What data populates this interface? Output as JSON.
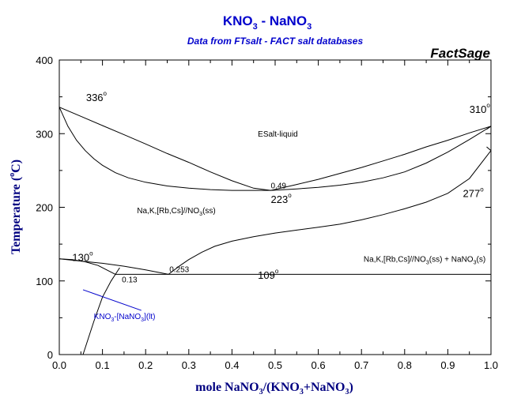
{
  "chart_data": {
    "type": "line",
    "title": {
      "main": "KNO",
      "sub1": "3",
      "mid": " - NaNO",
      "sub2": "3"
    },
    "subtitle": "Data from FTsalt - FACT salt databases",
    "brand": "FactSage",
    "xlabel": {
      "t1": "mole NaNO",
      "s1": "3",
      "t2": "/(KNO",
      "s2": "3",
      "t3": "+NaNO",
      "s3": "3",
      "t4": ")"
    },
    "ylabel": {
      "t1": "Temperature (",
      "sup": "o",
      "t2": "C)"
    },
    "xlim": [
      0,
      1
    ],
    "ylim": [
      0,
      400
    ],
    "xticks": [
      "0.0",
      "0.1",
      "0.2",
      "0.3",
      "0.4",
      "0.5",
      "0.6",
      "0.7",
      "0.8",
      "0.9",
      "1.0"
    ],
    "yticks": [
      "0",
      "100",
      "200",
      "300",
      "400"
    ],
    "grid": false,
    "colors": {
      "curves": "#000000",
      "title": "#0000cc",
      "labels": "#000080",
      "metastable": "#0000cc"
    },
    "series": [
      {
        "x": [
          0,
          0.05,
          0.1,
          0.15,
          0.2,
          0.25,
          0.3,
          0.35,
          0.4,
          0.45,
          0.49,
          0.55,
          0.6,
          0.65,
          0.7,
          0.75,
          0.8,
          0.85,
          0.9,
          0.95,
          1.0
        ],
        "y": [
          336,
          323.5,
          311,
          298.5,
          286,
          273,
          261,
          248,
          236,
          226,
          223,
          231,
          238,
          246,
          254,
          263,
          272,
          282,
          291,
          301,
          310
        ]
      },
      {
        "x": [
          0,
          0.02,
          0.04,
          0.06,
          0.08,
          0.1,
          0.13,
          0.16,
          0.2,
          0.25,
          0.3,
          0.35,
          0.4,
          0.45,
          0.49,
          0.55,
          0.6,
          0.65,
          0.7,
          0.75,
          0.8,
          0.85,
          0.9,
          0.95,
          1.0
        ],
        "y": [
          336,
          310,
          291,
          277,
          266,
          257,
          247,
          240,
          234,
          229,
          226,
          224,
          223,
          223,
          223,
          225,
          227,
          230,
          234,
          240,
          248,
          260,
          275,
          292,
          310
        ]
      },
      {
        "x": [
          0.253,
          0.28,
          0.3,
          0.33,
          0.36,
          0.4,
          0.45,
          0.5,
          0.55,
          0.6,
          0.65,
          0.7,
          0.75,
          0.8,
          0.85,
          0.9,
          0.95,
          1.0
        ],
        "y": [
          109,
          121,
          129,
          139,
          147,
          154,
          160,
          165,
          169,
          173,
          177,
          183,
          190,
          198,
          207,
          219,
          239,
          277
        ]
      },
      {
        "x": [
          0,
          0.05,
          0.1,
          0.15,
          0.2,
          0.253
        ],
        "y": [
          130,
          127,
          124,
          120,
          115,
          109
        ]
      },
      {
        "x": [
          0,
          0.03,
          0.06,
          0.09,
          0.13
        ],
        "y": [
          130,
          129,
          126,
          121,
          109
        ]
      },
      {
        "x": [
          0.055,
          0.08,
          0.1,
          0.12,
          0.13,
          0.14
        ],
        "y": [
          0,
          45,
          78,
          100,
          109,
          118
        ]
      },
      {
        "x": [
          0.13,
          1.0
        ],
        "y": [
          109,
          109
        ]
      },
      {
        "x": [
          0.99,
          1.0
        ],
        "y": [
          306,
          310
        ]
      },
      {
        "x": [
          0.99,
          1.0
        ],
        "y": [
          282,
          277
        ]
      }
    ],
    "metastable_pointer": {
      "x": [
        0.055,
        0.19
      ],
      "y": [
        88,
        60
      ]
    },
    "annotations": [
      {
        "text": "ESalt-liquid",
        "x": 0.46,
        "y": 296
      },
      {
        "text": "0.49",
        "x": 0.49,
        "y": 226
      },
      {
        "text": "0.253",
        "x": 0.255,
        "y": 112
      },
      {
        "text": "0.13",
        "x": 0.145,
        "y": 98
      },
      {
        "text": "Na,K,[Rb,Cs]//NO",
        "sub": "3",
        "tail": "(ss)",
        "x": 0.18,
        "y": 192
      },
      {
        "text": "Na,K,[Rb,Cs]//NO",
        "sub": "3",
        "tail": "(ss) + NaNO",
        "sub2": "3",
        "tail2": "(s)",
        "x": 0.705,
        "y": 126
      },
      {
        "text": "KNO",
        "sub": "3",
        "tail": "-[NaNO",
        "sub2": "3",
        "tail2": "](lt)",
        "x": 0.08,
        "y": 48
      },
      {
        "text": "336",
        "sup": "o",
        "x": 0.062,
        "y": 344
      },
      {
        "text": "310",
        "sup": "o",
        "x": 0.95,
        "y": 328
      },
      {
        "text": "223",
        "sup": "o",
        "x": 0.49,
        "y": 206
      },
      {
        "text": "277",
        "sup": "o",
        "x": 0.935,
        "y": 214
      },
      {
        "text": "130",
        "sup": "o",
        "x": 0.03,
        "y": 127
      },
      {
        "text": "109",
        "sup": "o",
        "x": 0.46,
        "y": 103
      }
    ]
  }
}
